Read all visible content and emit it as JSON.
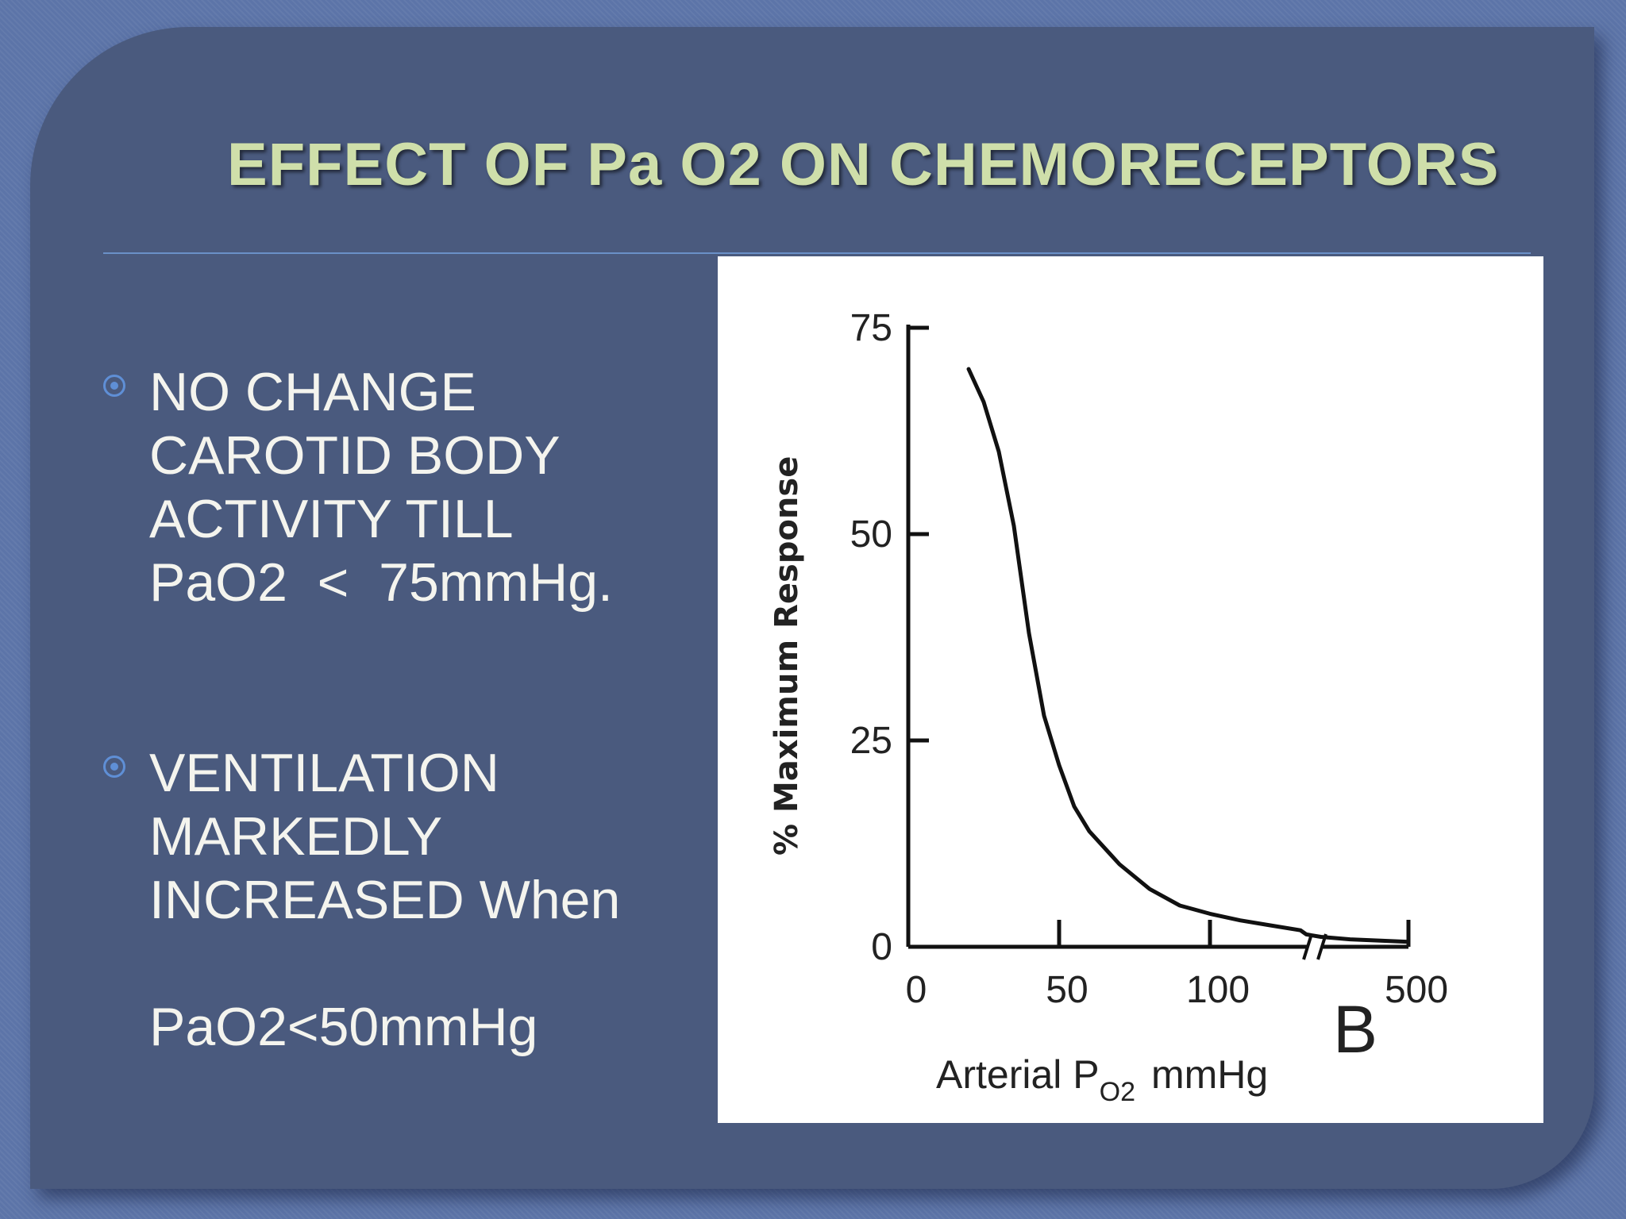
{
  "slide": {
    "title": "EFFECT OF Pa O2 ON CHEMORECEPTORS",
    "bullets": [
      {
        "lines": [
          "NO CHANGE",
          "CAROTID BODY",
          "ACTIVITY TILL",
          "PaO2  <  75mmHg."
        ]
      },
      {
        "lines": [
          "VENTILATION",
          "MARKEDLY",
          "INCREASED When",
          "",
          "PaO2<50mmHg"
        ]
      }
    ]
  },
  "chart_data": {
    "type": "line",
    "ylabel": "% Maximum Response",
    "xlabel": "Arterial P",
    "xlabel_subscript": "O2",
    "xlabel_unit": "mmHg",
    "panel_label": "B",
    "x_ticks": [
      "0",
      "50",
      "100",
      "500"
    ],
    "y_ticks": [
      "0",
      "25",
      "50",
      "75"
    ],
    "ylim": [
      0,
      75
    ],
    "x_axis_break": true,
    "series": [
      {
        "x": [
          20,
          25,
          30,
          35,
          40,
          45,
          50,
          55,
          60,
          70,
          80,
          90,
          100,
          110,
          120,
          130,
          150,
          200,
          300,
          500
        ],
        "y": [
          70,
          66,
          60,
          51,
          38,
          28,
          22,
          17,
          14,
          10,
          7,
          5,
          4,
          3.2,
          2.6,
          2,
          1.5,
          1.2,
          0.9,
          0.6
        ]
      }
    ],
    "line_color": "#111111"
  }
}
